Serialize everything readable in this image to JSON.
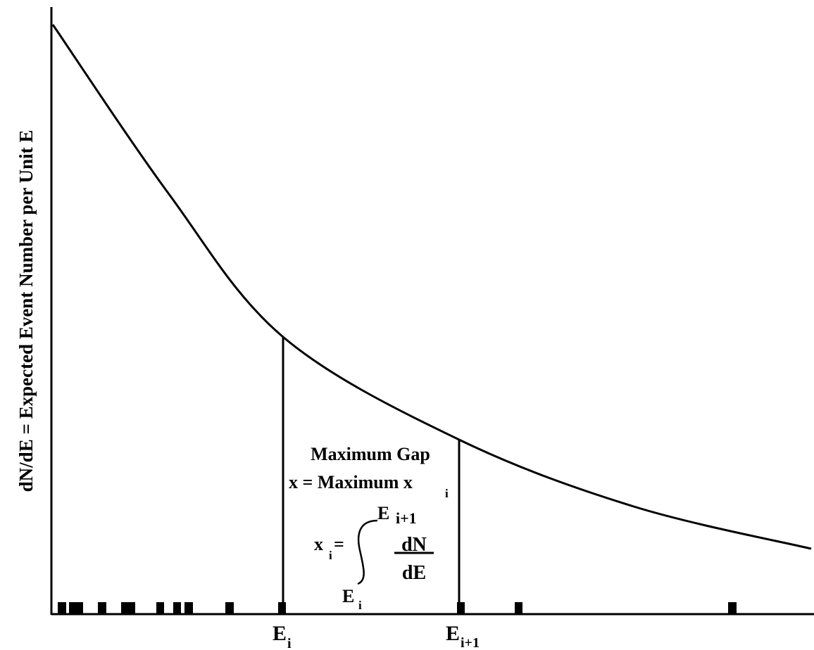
{
  "diagram": {
    "y_axis_label": "dN/dE = Expected Event Number per Unit E",
    "gap_title": "Maximum Gap",
    "gap_formula_lhs": "x = Maximum x",
    "gap_formula_sub": "i",
    "integral_var": "x",
    "integral_var_sub": "i",
    "integral_equals": "=",
    "integral_upper_base": "E",
    "integral_upper_sub": "i+1",
    "integral_lower_base": "E",
    "integral_lower_sub": "i",
    "fraction_numerator": "dN",
    "fraction_denominator": "dE",
    "x_tick_left_base": "E",
    "x_tick_left_sub": "i",
    "x_tick_right_base": "E",
    "x_tick_right_sub": "i+1"
  }
}
